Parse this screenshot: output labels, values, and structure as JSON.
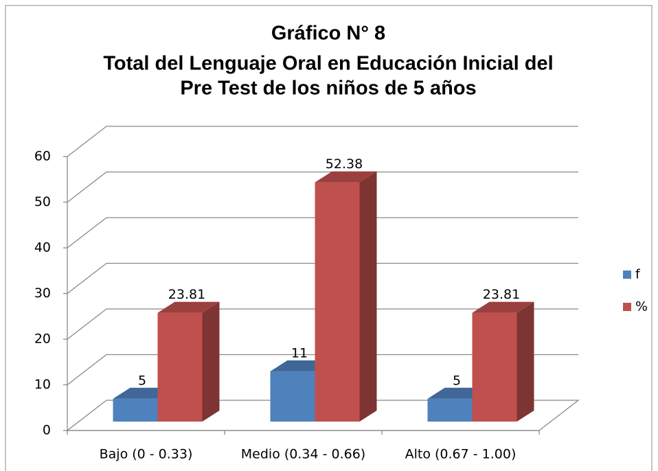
{
  "chart_data": {
    "type": "bar3d",
    "title": [
      "Gráfico N° 8",
      "Total del Lenguaje Oral en Educación Inicial del",
      "Pre Test de los niños de 5 años"
    ],
    "categories": [
      "Bajo (0 - 0.33)",
      "Medio (0.34 - 0.66)",
      "Alto (0.67 - 1.00)"
    ],
    "series": [
      {
        "name": "f",
        "color": "#4f81bd",
        "values": [
          5,
          11,
          5
        ]
      },
      {
        "name": "%",
        "color": "#c0504d",
        "values": [
          23.81,
          52.38,
          23.81
        ]
      }
    ],
    "ylim": [
      0,
      60
    ],
    "yticks": [
      0,
      10,
      20,
      30,
      40,
      50,
      60
    ],
    "grid": true,
    "legend": "right"
  }
}
